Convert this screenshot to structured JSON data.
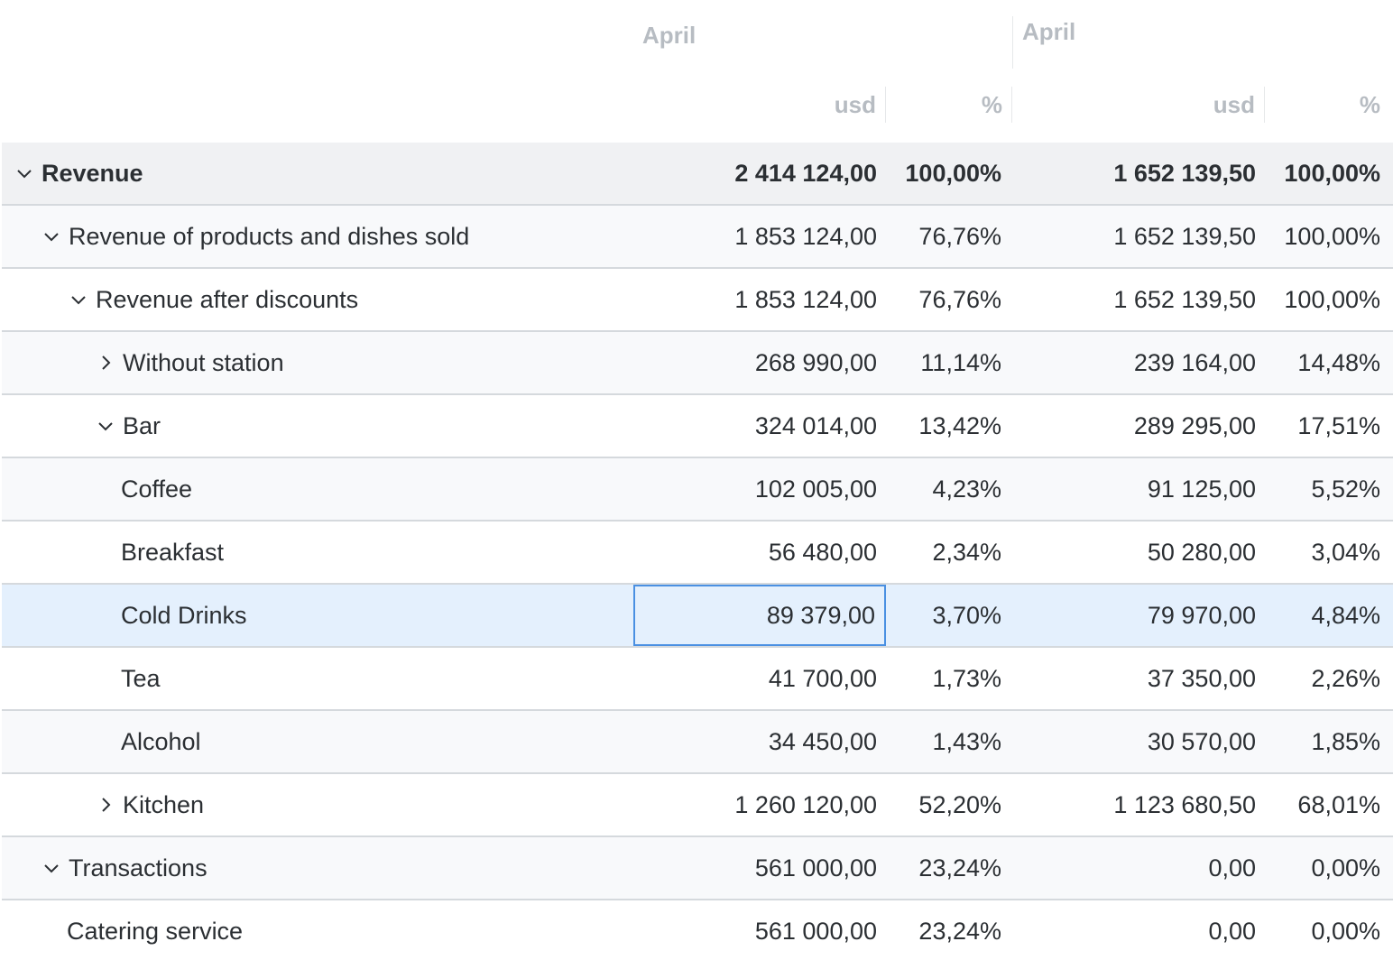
{
  "header": {
    "periods": [
      "April",
      "April"
    ],
    "units": [
      "usd",
      "%",
      "usd",
      "%"
    ]
  },
  "rows": [
    {
      "label": "Revenue",
      "expand": "expanded",
      "v1": "2 414 124,00",
      "p1": "100,00%",
      "v2": "1 652 139,50",
      "p2": "100,00%"
    },
    {
      "label": "Revenue of products and dishes sold",
      "expand": "expanded",
      "v1": "1 853 124,00",
      "p1": "76,76%",
      "v2": "1 652 139,50",
      "p2": "100,00%"
    },
    {
      "label": "Revenue after discounts",
      "expand": "expanded",
      "v1": "1 853 124,00",
      "p1": "76,76%",
      "v2": "1 652 139,50",
      "p2": "100,00%"
    },
    {
      "label": "Without station",
      "expand": "collapsed",
      "v1": "268 990,00",
      "p1": "11,14%",
      "v2": "239 164,00",
      "p2": "14,48%"
    },
    {
      "label": "Bar",
      "expand": "expanded",
      "v1": "324 014,00",
      "p1": "13,42%",
      "v2": "289 295,00",
      "p2": "17,51%"
    },
    {
      "label": "Coffee",
      "expand": "none",
      "v1": "102 005,00",
      "p1": "4,23%",
      "v2": "91 125,00",
      "p2": "5,52%"
    },
    {
      "label": "Breakfast",
      "expand": "none",
      "v1": "56 480,00",
      "p1": "2,34%",
      "v2": "50 280,00",
      "p2": "3,04%"
    },
    {
      "label": "Cold Drinks",
      "expand": "none",
      "v1": "89 379,00",
      "p1": "3,70%",
      "v2": "79 970,00",
      "p2": "4,84%"
    },
    {
      "label": "Tea",
      "expand": "none",
      "v1": "41 700,00",
      "p1": "1,73%",
      "v2": "37 350,00",
      "p2": "2,26%"
    },
    {
      "label": "Alcohol",
      "expand": "none",
      "v1": "34 450,00",
      "p1": "1,43%",
      "v2": "30 570,00",
      "p2": "1,85%"
    },
    {
      "label": "Kitchen",
      "expand": "collapsed",
      "v1": "1 260 120,00",
      "p1": "52,20%",
      "v2": "1 123 680,50",
      "p2": "68,01%"
    },
    {
      "label": "Transactions",
      "expand": "expanded",
      "v1": "561 000,00",
      "p1": "23,24%",
      "v2": "0,00",
      "p2": "0,00%"
    },
    {
      "label": "Catering service",
      "expand": "none",
      "v1": "561 000,00",
      "p1": "23,24%",
      "v2": "0,00",
      "p2": "0,00%"
    }
  ],
  "colors": {
    "selected_row": "#e4f0fd",
    "focus_border": "#4a90e2",
    "header_text": "#b7bcc2"
  }
}
